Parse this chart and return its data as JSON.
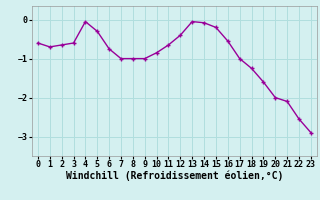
{
  "x": [
    0,
    1,
    2,
    3,
    4,
    5,
    6,
    7,
    8,
    9,
    10,
    11,
    12,
    13,
    14,
    15,
    16,
    17,
    18,
    19,
    20,
    21,
    22,
    23
  ],
  "y": [
    -0.6,
    -0.7,
    -0.65,
    -0.6,
    -0.05,
    -0.3,
    -0.75,
    -1.0,
    -1.0,
    -1.0,
    -0.85,
    -0.65,
    -0.4,
    -0.05,
    -0.08,
    -0.2,
    -0.55,
    -1.0,
    -1.25,
    -1.6,
    -2.0,
    -2.1,
    -2.55,
    -2.9
  ],
  "line_color": "#990099",
  "marker": "+",
  "markersize": 3.5,
  "markeredgewidth": 1.0,
  "linewidth": 1.0,
  "background_color": "#d4f0f0",
  "grid_color": "#b0dede",
  "xlabel": "Windchill (Refroidissement éolien,°C)",
  "xlabel_fontsize": 7.0,
  "tick_fontsize": 6.0,
  "ylim": [
    -3.5,
    0.35
  ],
  "yticks": [
    0,
    -1,
    -2,
    -3
  ],
  "xticks": [
    0,
    1,
    2,
    3,
    4,
    5,
    6,
    7,
    8,
    9,
    10,
    11,
    12,
    13,
    14,
    15,
    16,
    17,
    18,
    19,
    20,
    21,
    22,
    23
  ],
  "xlim": [
    -0.5,
    23.5
  ]
}
